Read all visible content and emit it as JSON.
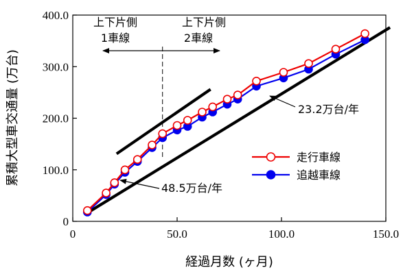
{
  "chart_data": {
    "type": "line",
    "xlabel": "経過月数 (ヶ月)",
    "ylabel": "累積大型車交通量 (万台)",
    "xlim": [
      0,
      150
    ],
    "ylim": [
      0,
      400
    ],
    "x_ticks": [
      "0",
      "50.0",
      "100.0",
      "150.0"
    ],
    "x_tick_values": [
      0,
      50,
      100,
      150
    ],
    "y_ticks": [
      "0",
      "100.0",
      "200.0",
      "300.0",
      "400.0"
    ],
    "y_tick_values": [
      0,
      100,
      200,
      300,
      400
    ],
    "legend_position": "right-middle",
    "series": [
      {
        "name": "走行車線",
        "color": "#ee0000",
        "marker": "open-circle",
        "points": [
          [
            7,
            21
          ],
          [
            16,
            55
          ],
          [
            20,
            75
          ],
          [
            25,
            100
          ],
          [
            31,
            120
          ],
          [
            38,
            148
          ],
          [
            43,
            170
          ],
          [
            50,
            186
          ],
          [
            55,
            196
          ],
          [
            62,
            212
          ],
          [
            67,
            222
          ],
          [
            74,
            237
          ],
          [
            79,
            245
          ],
          [
            88,
            272
          ],
          [
            101,
            289
          ],
          [
            113,
            306
          ],
          [
            126,
            334
          ],
          [
            140,
            364
          ]
        ]
      },
      {
        "name": "追越車線",
        "color": "#0000ee",
        "marker": "filled-circle",
        "points": [
          [
            7,
            18
          ],
          [
            16,
            52
          ],
          [
            20,
            72
          ],
          [
            25,
            95
          ],
          [
            31,
            116
          ],
          [
            38,
            143
          ],
          [
            43,
            162
          ],
          [
            50,
            177
          ],
          [
            55,
            184
          ],
          [
            62,
            202
          ],
          [
            67,
            212
          ],
          [
            74,
            227
          ],
          [
            79,
            237
          ],
          [
            88,
            262
          ],
          [
            101,
            278
          ],
          [
            113,
            295
          ],
          [
            126,
            324
          ],
          [
            140,
            352
          ]
        ]
      }
    ],
    "trend_lines": [
      {
        "color": "#000000",
        "from": [
          6,
          14
        ],
        "to": [
          152,
          376
        ]
      },
      {
        "color": "#000000",
        "from": [
          21,
          131
        ],
        "to": [
          66,
          256
        ]
      }
    ],
    "divider": {
      "x": 43
    },
    "annotations": {
      "left_segment": [
        "上下片側",
        "1車線"
      ],
      "right_segment": [
        "上下片側",
        "2車線"
      ],
      "slope_low": "48.5万台/年",
      "slope_high": "23.2万台/年"
    }
  }
}
